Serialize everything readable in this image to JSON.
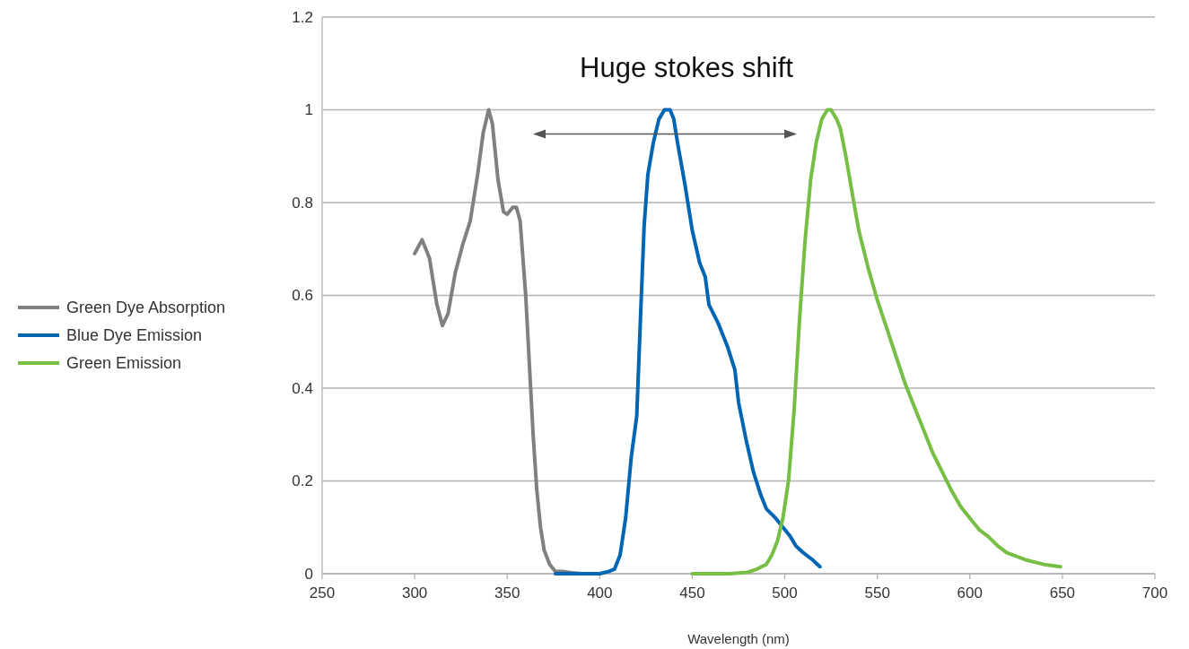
{
  "chart_data": {
    "type": "line",
    "xlabel": "Wavelength (nm)",
    "annotations": [
      "Huge stokes shift"
    ],
    "xlim": [
      250,
      700
    ],
    "xticks": [
      250,
      300,
      350,
      400,
      450,
      500,
      550,
      600,
      650,
      700
    ],
    "ylim": [
      0,
      1.2
    ],
    "yticks": [
      0,
      0.2,
      0.4,
      0.6,
      0.8,
      1,
      1.2
    ],
    "grid": "y",
    "legend": "left",
    "line_style": "solid",
    "series": [
      {
        "name": "Green Dye Absorption",
        "color": "#808080",
        "x": [
          300,
          304,
          308,
          312,
          315,
          318,
          322,
          326,
          330,
          334,
          337,
          340,
          342,
          345,
          348,
          350,
          353,
          355,
          357,
          360,
          362,
          364,
          366,
          368,
          370,
          373,
          376,
          380,
          385,
          390,
          400
        ],
        "values": [
          0.69,
          0.72,
          0.68,
          0.58,
          0.535,
          0.56,
          0.65,
          0.71,
          0.76,
          0.86,
          0.95,
          1.0,
          0.97,
          0.85,
          0.78,
          0.775,
          0.79,
          0.79,
          0.76,
          0.6,
          0.45,
          0.3,
          0.18,
          0.1,
          0.05,
          0.02,
          0.005,
          0.005,
          0.002,
          0,
          0
        ]
      },
      {
        "name": "Blue Dye Emission",
        "color": "#0065b3",
        "x": [
          376,
          400,
          405,
          408,
          411,
          414,
          417,
          420,
          422,
          424,
          426,
          429,
          432,
          435,
          438,
          440,
          442,
          446,
          450,
          454,
          457,
          459,
          464,
          469,
          473,
          475,
          479,
          483,
          487,
          490,
          495,
          500,
          503,
          506,
          510,
          515,
          519
        ],
        "values": [
          0,
          0,
          0.005,
          0.01,
          0.04,
          0.12,
          0.25,
          0.34,
          0.55,
          0.75,
          0.86,
          0.93,
          0.98,
          1.0,
          1.0,
          0.98,
          0.93,
          0.84,
          0.74,
          0.67,
          0.64,
          0.58,
          0.54,
          0.49,
          0.44,
          0.37,
          0.29,
          0.22,
          0.17,
          0.14,
          0.12,
          0.095,
          0.08,
          0.06,
          0.045,
          0.03,
          0.015
        ]
      },
      {
        "name": "Green Emission",
        "color": "#76bf44",
        "x": [
          450,
          470,
          480,
          485,
          490,
          493,
          496,
          499,
          502,
          505,
          508,
          511,
          514,
          517,
          520,
          523,
          525,
          528,
          530,
          533,
          536,
          540,
          545,
          550,
          555,
          560,
          565,
          570,
          575,
          580,
          585,
          590,
          595,
          600,
          605,
          610,
          615,
          620,
          630,
          640,
          649
        ],
        "values": [
          0,
          0,
          0.003,
          0.01,
          0.02,
          0.04,
          0.07,
          0.12,
          0.2,
          0.35,
          0.55,
          0.72,
          0.85,
          0.93,
          0.98,
          1.0,
          1.0,
          0.98,
          0.96,
          0.9,
          0.83,
          0.74,
          0.66,
          0.59,
          0.53,
          0.47,
          0.41,
          0.36,
          0.31,
          0.26,
          0.22,
          0.18,
          0.145,
          0.12,
          0.095,
          0.08,
          0.06,
          0.045,
          0.03,
          0.02,
          0.015
        ]
      }
    ]
  }
}
